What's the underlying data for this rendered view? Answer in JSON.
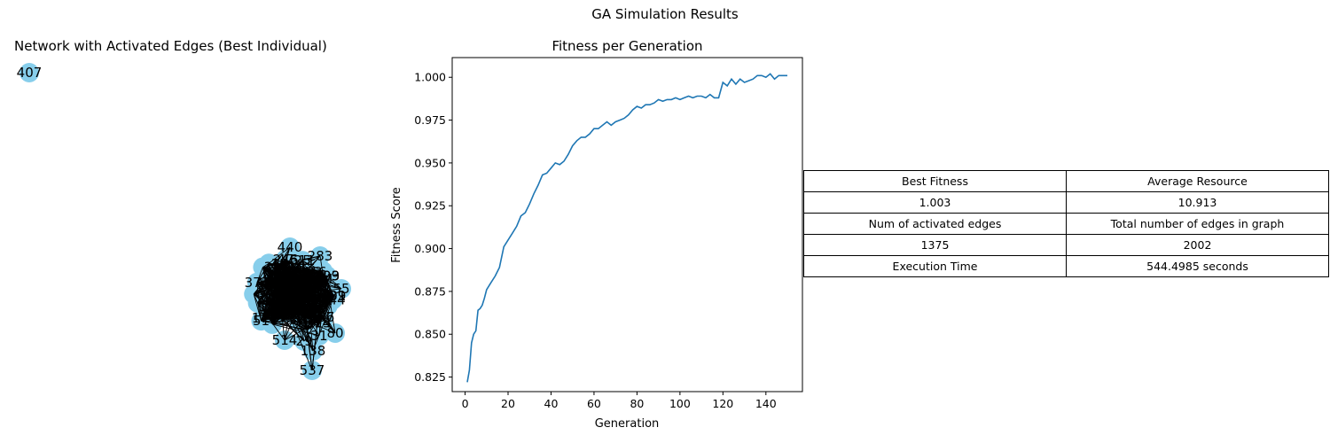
{
  "figure": {
    "suptitle": "GA Simulation Results"
  },
  "network": {
    "title": "Network with Activated Edges (Best Individual)",
    "node_color": "#87ceeb",
    "edge_color": "#000000",
    "labeled_nodes": [
      "407",
      "440",
      "283",
      "537",
      "138",
      "514",
      "29",
      "31",
      "80",
      "55"
    ]
  },
  "chart_data": {
    "type": "line",
    "title": "Fitness per Generation",
    "xlabel": "Generation",
    "ylabel": "Fitness Score",
    "xlim": [
      -6,
      157
    ],
    "ylim": [
      0.8165,
      1.0115
    ],
    "xticks": [
      0,
      20,
      40,
      60,
      80,
      100,
      120,
      140
    ],
    "yticks": [
      0.825,
      0.85,
      0.875,
      0.9,
      0.925,
      0.95,
      0.975,
      1.0
    ],
    "ytick_labels": [
      "0.825",
      "0.850",
      "0.875",
      "0.900",
      "0.925",
      "0.950",
      "0.975",
      "1.000"
    ],
    "line_color": "#1f77b4",
    "series": [
      {
        "x": [
          1,
          2,
          3,
          4,
          5,
          6,
          7,
          8,
          9,
          10,
          12,
          14,
          16,
          18,
          20,
          22,
          24,
          26,
          28,
          30,
          32,
          34,
          36,
          38,
          40,
          42,
          44,
          46,
          48,
          50,
          52,
          54,
          56,
          58,
          60,
          62,
          64,
          66,
          68,
          70,
          72,
          74,
          76,
          78,
          80,
          82,
          84,
          86,
          88,
          90,
          92,
          94,
          96,
          98,
          100,
          102,
          104,
          106,
          108,
          110,
          112,
          114,
          116,
          118,
          120,
          122,
          124,
          126,
          128,
          130,
          132,
          134,
          136,
          138,
          140,
          142,
          144,
          146,
          148,
          150
        ],
        "y": [
          0.822,
          0.829,
          0.845,
          0.85,
          0.852,
          0.864,
          0.865,
          0.867,
          0.871,
          0.876,
          0.88,
          0.884,
          0.889,
          0.901,
          0.905,
          0.909,
          0.913,
          0.919,
          0.921,
          0.926,
          0.932,
          0.937,
          0.943,
          0.944,
          0.947,
          0.95,
          0.949,
          0.951,
          0.955,
          0.96,
          0.963,
          0.965,
          0.965,
          0.967,
          0.97,
          0.97,
          0.972,
          0.974,
          0.972,
          0.974,
          0.975,
          0.976,
          0.978,
          0.981,
          0.983,
          0.982,
          0.984,
          0.984,
          0.985,
          0.987,
          0.986,
          0.987,
          0.987,
          0.988,
          0.987,
          0.988,
          0.989,
          0.988,
          0.989,
          0.989,
          0.988,
          0.99,
          0.988,
          0.988,
          0.997,
          0.995,
          0.999,
          0.996,
          0.999,
          0.997,
          0.998,
          0.999,
          1.001,
          1.001,
          1.0,
          1.002,
          0.999,
          1.001,
          1.001,
          1.001
        ]
      }
    ]
  },
  "stats_table": {
    "rows": [
      [
        "Best Fitness",
        "Average Resource"
      ],
      [
        "1.003",
        "10.913"
      ],
      [
        "Num of activated edges",
        "Total number of edges in graph"
      ],
      [
        "1375",
        "2002"
      ],
      [
        "Execution Time",
        "544.4985 seconds"
      ]
    ]
  }
}
